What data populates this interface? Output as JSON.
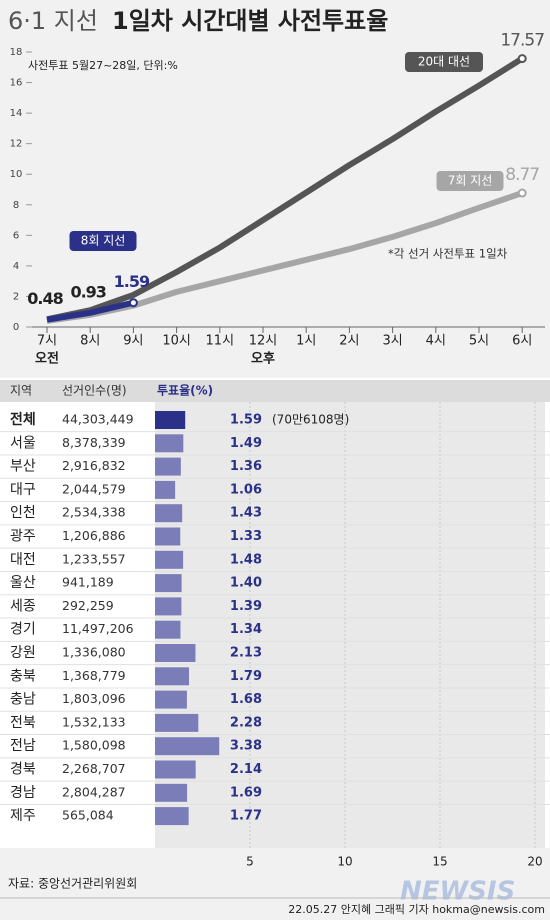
{
  "chart_data": [
    {
      "type": "line",
      "title_light": "6·1 지선",
      "title": "1일차 시간대별 사전투표율",
      "subtitle": "사전투표 5월27~28일, 단위:%",
      "annotation": "*각 선거 사전투표 1일차",
      "categories": [
        "7시",
        "8시",
        "9시",
        "10시",
        "11시",
        "12시",
        "1시",
        "2시",
        "3시",
        "4시",
        "5시",
        "6시"
      ],
      "period_labels": [
        "오전",
        null,
        null,
        null,
        null,
        "오후",
        null,
        null,
        null,
        null,
        null,
        null
      ],
      "ylim": [
        0,
        18
      ],
      "yticks": [
        0,
        2,
        4,
        6,
        8,
        10,
        12,
        14,
        16,
        18
      ],
      "series": [
        {
          "name": "20대 대선",
          "color": "#555555",
          "label": "last",
          "values": [
            0.5,
            1.1,
            2.1,
            3.6,
            5.2,
            7.0,
            8.8,
            10.6,
            12.3,
            14.1,
            15.8,
            17.57
          ]
        },
        {
          "name": "7회 지선",
          "color": "#a6a6a6",
          "label": "last",
          "values": [
            0.4,
            0.8,
            1.4,
            2.3,
            3.0,
            3.7,
            4.4,
            5.1,
            5.9,
            6.8,
            7.8,
            8.77
          ]
        },
        {
          "name": "8회 지선",
          "color": "#2b3188",
          "label": "all",
          "values": [
            0.48,
            0.93,
            1.59,
            null,
            null,
            null,
            null,
            null,
            null,
            null,
            null,
            null
          ]
        }
      ]
    },
    {
      "type": "bar",
      "headers": [
        "지역",
        "선거인수(명)",
        "투표율(%)"
      ],
      "categories": [
        "전체",
        "서울",
        "부산",
        "대구",
        "인천",
        "광주",
        "대전",
        "울산",
        "세종",
        "경기",
        "강원",
        "충북",
        "충남",
        "전북",
        "전남",
        "경북",
        "경남",
        "제주"
      ],
      "voters": [
        "44,303,449",
        "8,378,339",
        "2,916,832",
        "2,044,579",
        "2,534,338",
        "1,206,886",
        "1,233,557",
        "941,189",
        "292,259",
        "11,497,206",
        "1,336,080",
        "1,368,779",
        "1,803,096",
        "1,532,133",
        "1,580,098",
        "2,268,707",
        "2,804,287",
        "565,084"
      ],
      "values": [
        1.59,
        1.49,
        1.36,
        1.06,
        1.43,
        1.33,
        1.48,
        1.4,
        1.39,
        1.34,
        2.13,
        1.79,
        1.68,
        2.28,
        3.38,
        2.14,
        1.69,
        1.77
      ],
      "value_labels": [
        "1.59",
        "1.49",
        "1.36",
        "1.06",
        "1.43",
        "1.33",
        "1.48",
        "1.40",
        "1.39",
        "1.34",
        "2.13",
        "1.79",
        "1.68",
        "2.28",
        "3.38",
        "2.14",
        "1.69",
        "1.77"
      ],
      "note": "(70만6108명)",
      "xlim": [
        0,
        20
      ],
      "xticks": [
        5,
        10,
        15,
        20
      ],
      "color": "#7b7db9",
      "highlight_color": "#2b3188"
    }
  ],
  "footer": {
    "source": "자료: 중앙선거관리위원회",
    "credit": "22.05.27 안지혜 그래픽 기자 hokma@newsis.com",
    "logo": "NEWSIS"
  }
}
